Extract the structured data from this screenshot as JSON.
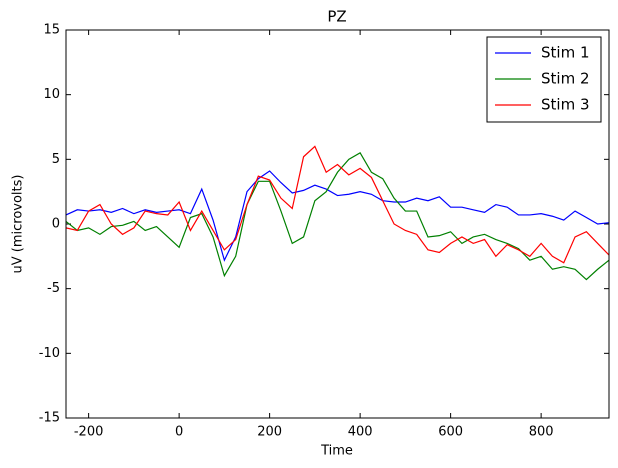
{
  "chart_data": {
    "type": "line",
    "title": "PZ",
    "x_label": "Time",
    "y_label": "uV (microvolts)",
    "x": [
      -250,
      -225,
      -200,
      -175,
      -150,
      -125,
      -100,
      -75,
      -50,
      -25,
      0,
      25,
      50,
      75,
      100,
      125,
      150,
      175,
      200,
      225,
      250,
      275,
      300,
      325,
      350,
      375,
      400,
      425,
      450,
      475,
      500,
      525,
      550,
      575,
      600,
      625,
      650,
      675,
      700,
      725,
      750,
      775,
      800,
      825,
      850,
      875,
      900,
      925,
      950
    ],
    "series": [
      {
        "name": "Stim 1",
        "color": "#0000ff",
        "values": [
          0.7,
          1.1,
          1.0,
          1.1,
          0.9,
          1.2,
          0.8,
          1.1,
          0.9,
          1.0,
          1.1,
          0.8,
          2.7,
          0.3,
          -2.8,
          -1.0,
          2.5,
          3.5,
          4.1,
          3.2,
          2.4,
          2.6,
          3.0,
          2.7,
          2.2,
          2.3,
          2.5,
          2.3,
          1.8,
          1.7,
          1.7,
          2.0,
          1.8,
          2.1,
          1.3,
          1.3,
          1.1,
          0.9,
          1.5,
          1.3,
          0.7,
          0.7,
          0.8,
          0.6,
          0.3,
          1.0,
          0.5,
          0.0,
          0.1
        ]
      },
      {
        "name": "Stim 2",
        "color": "#008000",
        "values": [
          0.2,
          -0.5,
          -0.3,
          -0.8,
          -0.2,
          -0.1,
          0.2,
          -0.5,
          -0.2,
          -1.0,
          -1.8,
          0.5,
          0.8,
          -1.0,
          -4.0,
          -2.5,
          1.5,
          3.3,
          3.3,
          1.0,
          -1.5,
          -1.0,
          1.8,
          2.5,
          4.0,
          5.0,
          5.5,
          4.0,
          3.5,
          2.0,
          1.0,
          1.0,
          -1.0,
          -0.9,
          -0.6,
          -1.5,
          -1.0,
          -0.8,
          -1.2,
          -1.5,
          -1.9,
          -2.8,
          -2.5,
          -3.5,
          -3.3,
          -3.5,
          -4.3,
          -3.5,
          -2.8
        ]
      },
      {
        "name": "Stim 3",
        "color": "#ff0000",
        "values": [
          -0.3,
          -0.5,
          1.0,
          1.5,
          0.0,
          -0.8,
          -0.3,
          1.0,
          0.8,
          0.7,
          1.7,
          -0.5,
          1.0,
          -0.5,
          -2.0,
          -1.2,
          1.5,
          3.7,
          3.4,
          2.0,
          1.2,
          5.2,
          6.0,
          4.0,
          4.6,
          3.8,
          4.3,
          3.6,
          1.8,
          0.0,
          -0.5,
          -0.8,
          -2.0,
          -2.2,
          -1.5,
          -1.0,
          -1.5,
          -1.2,
          -2.5,
          -1.6,
          -2.0,
          -2.5,
          -1.5,
          -2.5,
          -3.0,
          -1.0,
          -0.6,
          -1.5,
          -2.4
        ]
      }
    ],
    "xlim": [
      -250,
      950
    ],
    "ylim": [
      -15,
      15
    ],
    "xticks": [
      -200,
      0,
      200,
      400,
      600,
      800
    ],
    "yticks": [
      -15,
      -10,
      -5,
      0,
      5,
      10,
      15
    ],
    "legend": "upper right"
  }
}
